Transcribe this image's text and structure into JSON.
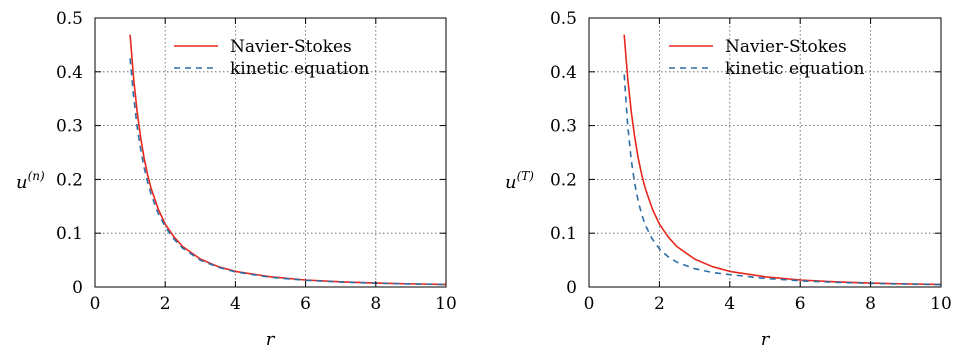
{
  "chart_data": [
    {
      "type": "line",
      "xlabel": "r",
      "ylabel_base": "u",
      "ylabel_sup": "(n)",
      "xlim": [
        0,
        10
      ],
      "ylim": [
        0,
        0.5
      ],
      "xticks": [
        "0",
        "2",
        "4",
        "6",
        "8",
        "10"
      ],
      "yticks": [
        "0",
        "0.1",
        "0.2",
        "0.3",
        "0.4",
        "0.5"
      ],
      "grid": true,
      "legend": "top-right",
      "series": [
        {
          "name": "Navier-Stokes",
          "color": "#e8281e",
          "style": "solid",
          "x": [
            1.0,
            1.1,
            1.2,
            1.3,
            1.4,
            1.5,
            1.6,
            1.8,
            2.0,
            2.25,
            2.5,
            3.0,
            3.5,
            4.0,
            5.0,
            6.0,
            7.0,
            8.0,
            9.0,
            10.0
          ],
          "y": [
            0.469,
            0.388,
            0.326,
            0.278,
            0.239,
            0.208,
            0.183,
            0.145,
            0.117,
            0.093,
            0.075,
            0.052,
            0.038,
            0.029,
            0.019,
            0.013,
            0.0096,
            0.0073,
            0.0058,
            0.0047
          ]
        },
        {
          "name": "kinetic equation",
          "color": "#2e6fa7",
          "style": "dashed",
          "x": [
            1.0,
            1.1,
            1.2,
            1.3,
            1.4,
            1.5,
            1.6,
            1.8,
            2.0,
            2.25,
            2.5,
            3.0,
            3.5,
            4.0,
            5.0,
            6.0,
            7.0,
            8.0,
            9.0,
            10.0
          ],
          "y": [
            0.425,
            0.354,
            0.298,
            0.256,
            0.222,
            0.195,
            0.172,
            0.137,
            0.112,
            0.089,
            0.072,
            0.05,
            0.037,
            0.028,
            0.018,
            0.0125,
            0.0092,
            0.007,
            0.0056,
            0.0045
          ]
        }
      ]
    },
    {
      "type": "line",
      "xlabel": "r",
      "ylabel_base": "u",
      "ylabel_sup": "(T)",
      "xlim": [
        0,
        10
      ],
      "ylim": [
        0,
        0.5
      ],
      "xticks": [
        "0",
        "2",
        "4",
        "6",
        "8",
        "10"
      ],
      "yticks": [
        "0",
        "0.1",
        "0.2",
        "0.3",
        "0.4",
        "0.5"
      ],
      "grid": true,
      "legend": "top-right",
      "series": [
        {
          "name": "Navier-Stokes",
          "color": "#e8281e",
          "style": "solid",
          "x": [
            1.0,
            1.1,
            1.2,
            1.3,
            1.4,
            1.5,
            1.6,
            1.8,
            2.0,
            2.25,
            2.5,
            3.0,
            3.5,
            4.0,
            5.0,
            6.0,
            7.0,
            8.0,
            9.0,
            10.0
          ],
          "y": [
            0.469,
            0.388,
            0.326,
            0.278,
            0.239,
            0.208,
            0.183,
            0.145,
            0.117,
            0.093,
            0.075,
            0.052,
            0.038,
            0.029,
            0.019,
            0.013,
            0.0096,
            0.0073,
            0.0058,
            0.0047
          ]
        },
        {
          "name": "kinetic equation",
          "color": "#2e6fa7",
          "style": "dashed",
          "x": [
            1.0,
            1.1,
            1.2,
            1.3,
            1.4,
            1.5,
            1.6,
            1.8,
            2.0,
            2.25,
            2.5,
            3.0,
            3.5,
            4.0,
            5.0,
            6.0,
            7.0,
            8.0,
            9.0,
            10.0
          ],
          "y": [
            0.395,
            0.3,
            0.236,
            0.192,
            0.159,
            0.134,
            0.115,
            0.089,
            0.071,
            0.056,
            0.046,
            0.034,
            0.027,
            0.023,
            0.016,
            0.0115,
            0.0087,
            0.0068,
            0.0054,
            0.0044
          ]
        }
      ]
    }
  ]
}
